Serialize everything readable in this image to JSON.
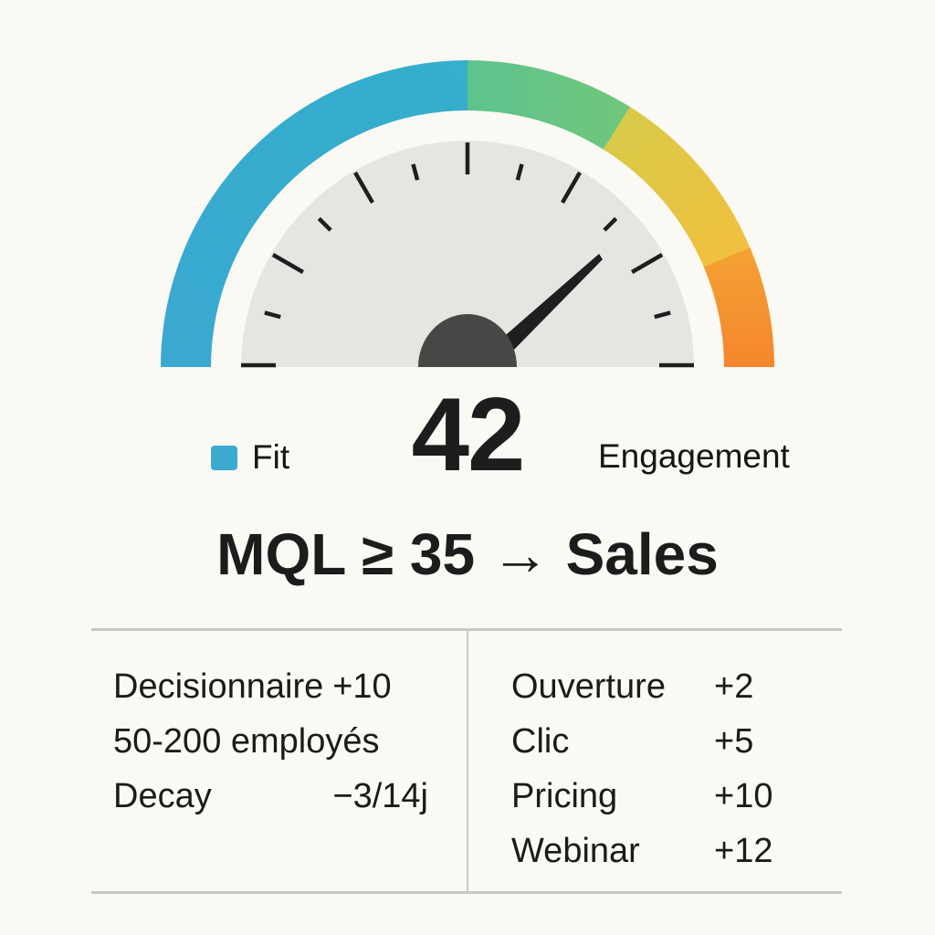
{
  "gauge": {
    "value": 42,
    "needle_angle_deg": 40,
    "segments": [
      {
        "name": "fit",
        "from_deg": 180,
        "to_deg": 90,
        "color_start": "#3aa8d0",
        "color_end": "#36b0cc"
      },
      {
        "name": "engagement-green",
        "from_deg": 90,
        "to_deg": 58,
        "color_start": "#5fc48e",
        "color_end": "#6cc67c"
      },
      {
        "name": "engagement-yellow",
        "from_deg": 58,
        "to_deg": 23,
        "color_start": "#d8cb46",
        "color_end": "#f2c140"
      },
      {
        "name": "engagement-orange",
        "from_deg": 23,
        "to_deg": 0,
        "color_start": "#f4a233",
        "color_end": "#f5872d"
      }
    ],
    "dial_color": "#e6e5e2",
    "hub_color": "#474846",
    "needle_color": "#1f1f1f"
  },
  "legend": {
    "fit_label": "Fit",
    "fit_color": "#3aabcf",
    "engagement_label": "Engagement"
  },
  "score": {
    "value": "42"
  },
  "rule": {
    "text": "MQL ≥ 35 → Sales"
  },
  "fit_criteria": [
    {
      "label": "Decisionnaire",
      "value": "+10"
    },
    {
      "label": "50-200 employés",
      "value": ""
    },
    {
      "label": "Decay",
      "value": "−3/14j"
    }
  ],
  "engagement_criteria": [
    {
      "label": "Ouverture",
      "value": "+2"
    },
    {
      "label": "Clic",
      "value": "+5"
    },
    {
      "label": "Pricing",
      "value": "+10"
    },
    {
      "label": "Webinar",
      "value": "+12"
    }
  ]
}
